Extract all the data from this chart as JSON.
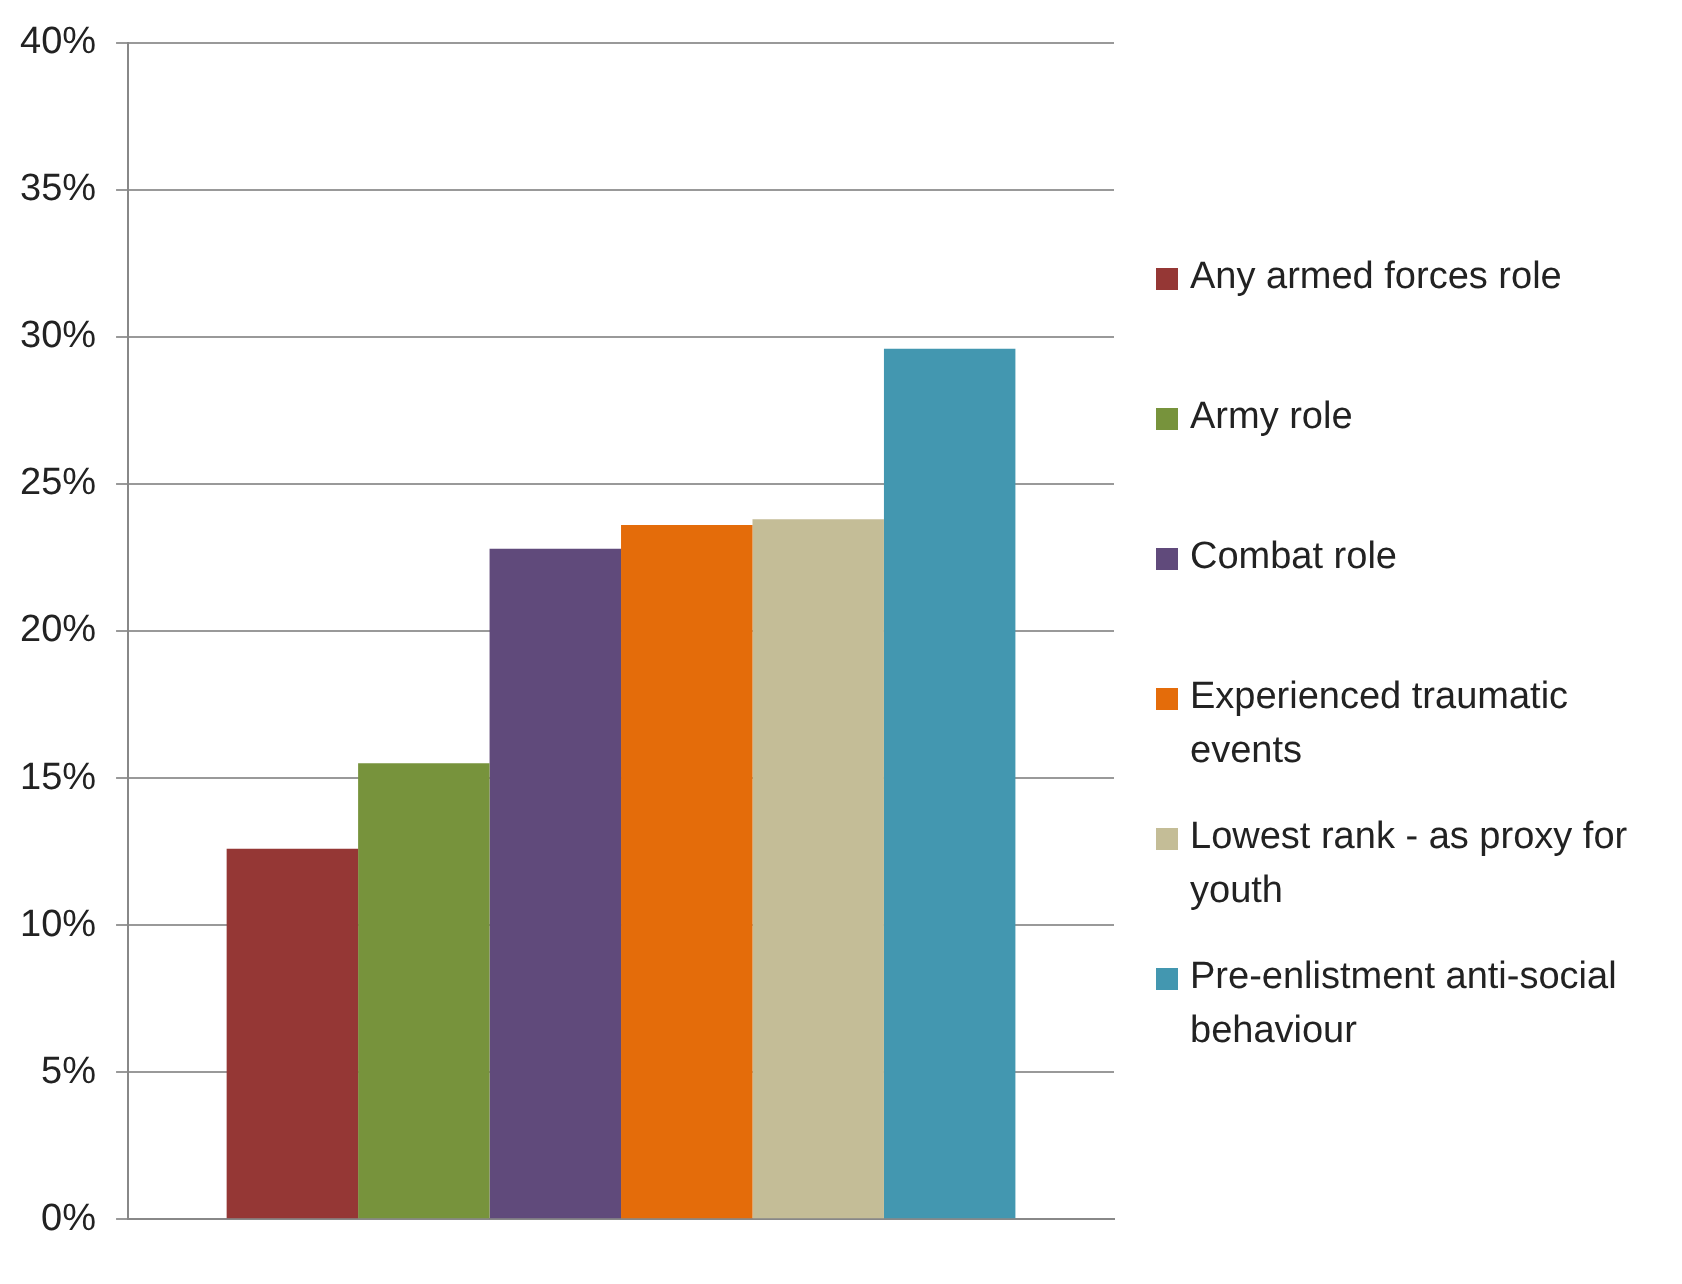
{
  "chart_data": {
    "type": "bar",
    "categories": [
      null
    ],
    "series": [
      {
        "name": "Any armed forces role",
        "color": "#953735",
        "values": [
          12.6
        ]
      },
      {
        "name": "Army role",
        "color": "#77933c",
        "values": [
          15.5
        ]
      },
      {
        "name": "Combat role",
        "color": "#604a7b",
        "values": [
          22.8
        ]
      },
      {
        "name": "Experienced traumatic events",
        "color": "#e46c0a",
        "values": [
          23.6
        ]
      },
      {
        "name": "Lowest rank - as proxy for youth",
        "color": "#c4bd97",
        "values": [
          23.8
        ]
      },
      {
        "name": "Pre-enlistment anti-social behaviour",
        "color": "#4397b0",
        "values": [
          29.6
        ]
      }
    ],
    "ylim": [
      0,
      40
    ],
    "yticks": [
      {
        "value": 0,
        "label": "0%"
      },
      {
        "value": 5,
        "label": "5%"
      },
      {
        "value": 10,
        "label": "10%"
      },
      {
        "value": 15,
        "label": "15%"
      },
      {
        "value": 20,
        "label": "20%"
      },
      {
        "value": 25,
        "label": "25%"
      },
      {
        "value": 30,
        "label": "30%"
      },
      {
        "value": 35,
        "label": "35%"
      },
      {
        "value": 40,
        "label": "40%"
      }
    ],
    "grid": "y",
    "legend": "right"
  }
}
